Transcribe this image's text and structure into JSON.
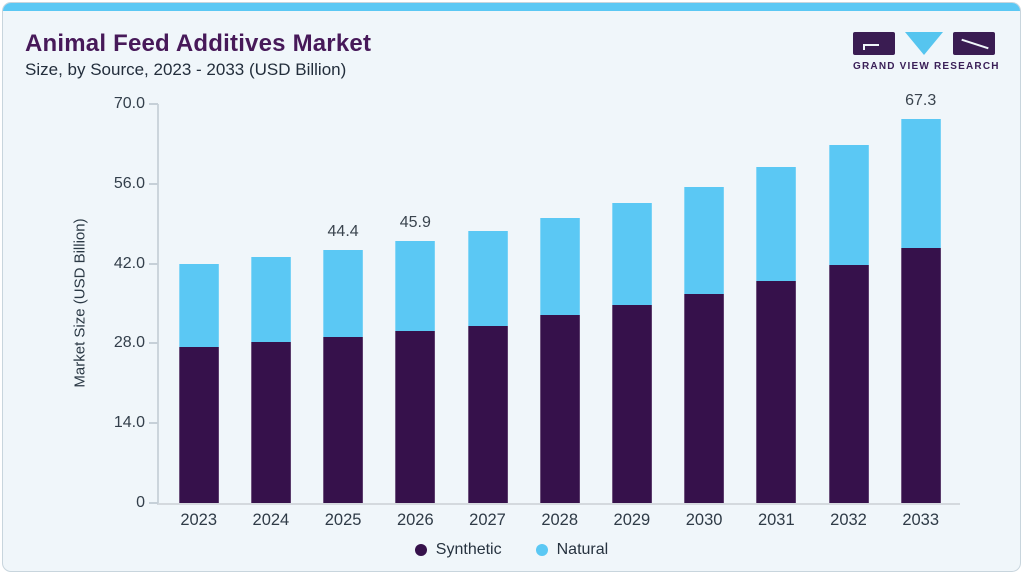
{
  "card": {
    "title": "Animal Feed Additives Market",
    "subtitle": "Size, by Source, 2023 - 2033 (USD Billion)",
    "logo_text": "GRAND VIEW RESEARCH"
  },
  "colors": {
    "synthetic": "#36114b",
    "natural": "#5bc8f4",
    "accent_strip": "#5bc8f4",
    "title_purple": "#471959",
    "axis_text": "#333f4b",
    "axis_line": "#ccd5dc",
    "card_bg": "#f0f6fa",
    "card_border": "#c8d5dd"
  },
  "chart_data": {
    "type": "bar",
    "stacked": true,
    "title": "Animal Feed Additives Market Size, by Source, 2023 - 2033 (USD Billion)",
    "categories": [
      "2023",
      "2024",
      "2025",
      "2026",
      "2027",
      "2028",
      "2029",
      "2030",
      "2031",
      "2032",
      "2033"
    ],
    "series": [
      {
        "name": "Synthetic",
        "color": "#36114b",
        "values": [
          27.3,
          28.2,
          29.1,
          30.2,
          31.1,
          32.9,
          34.7,
          36.6,
          39.0,
          41.7,
          44.7
        ]
      },
      {
        "name": "Natural",
        "color": "#5bc8f4",
        "values": [
          14.7,
          14.9,
          15.3,
          15.7,
          16.7,
          17.1,
          18.0,
          18.9,
          19.9,
          21.1,
          22.6
        ]
      }
    ],
    "totals": [
      42.0,
      43.1,
      44.4,
      45.9,
      47.8,
      50.0,
      52.7,
      55.5,
      58.9,
      62.8,
      67.3
    ],
    "total_labels_shown": {
      "2025": "44.4",
      "2026": "45.9",
      "2033": "67.3"
    },
    "xlabel": "",
    "ylabel": "Market Size (USD Billion)",
    "ylim": [
      0,
      70
    ],
    "ytick_values": [
      70,
      56,
      42,
      28,
      14,
      0
    ],
    "ytick_labels": [
      "70.0",
      "56.0",
      "42.0",
      "28.0",
      "14.0",
      "0"
    ],
    "grid": false,
    "legend_position": "bottom"
  }
}
